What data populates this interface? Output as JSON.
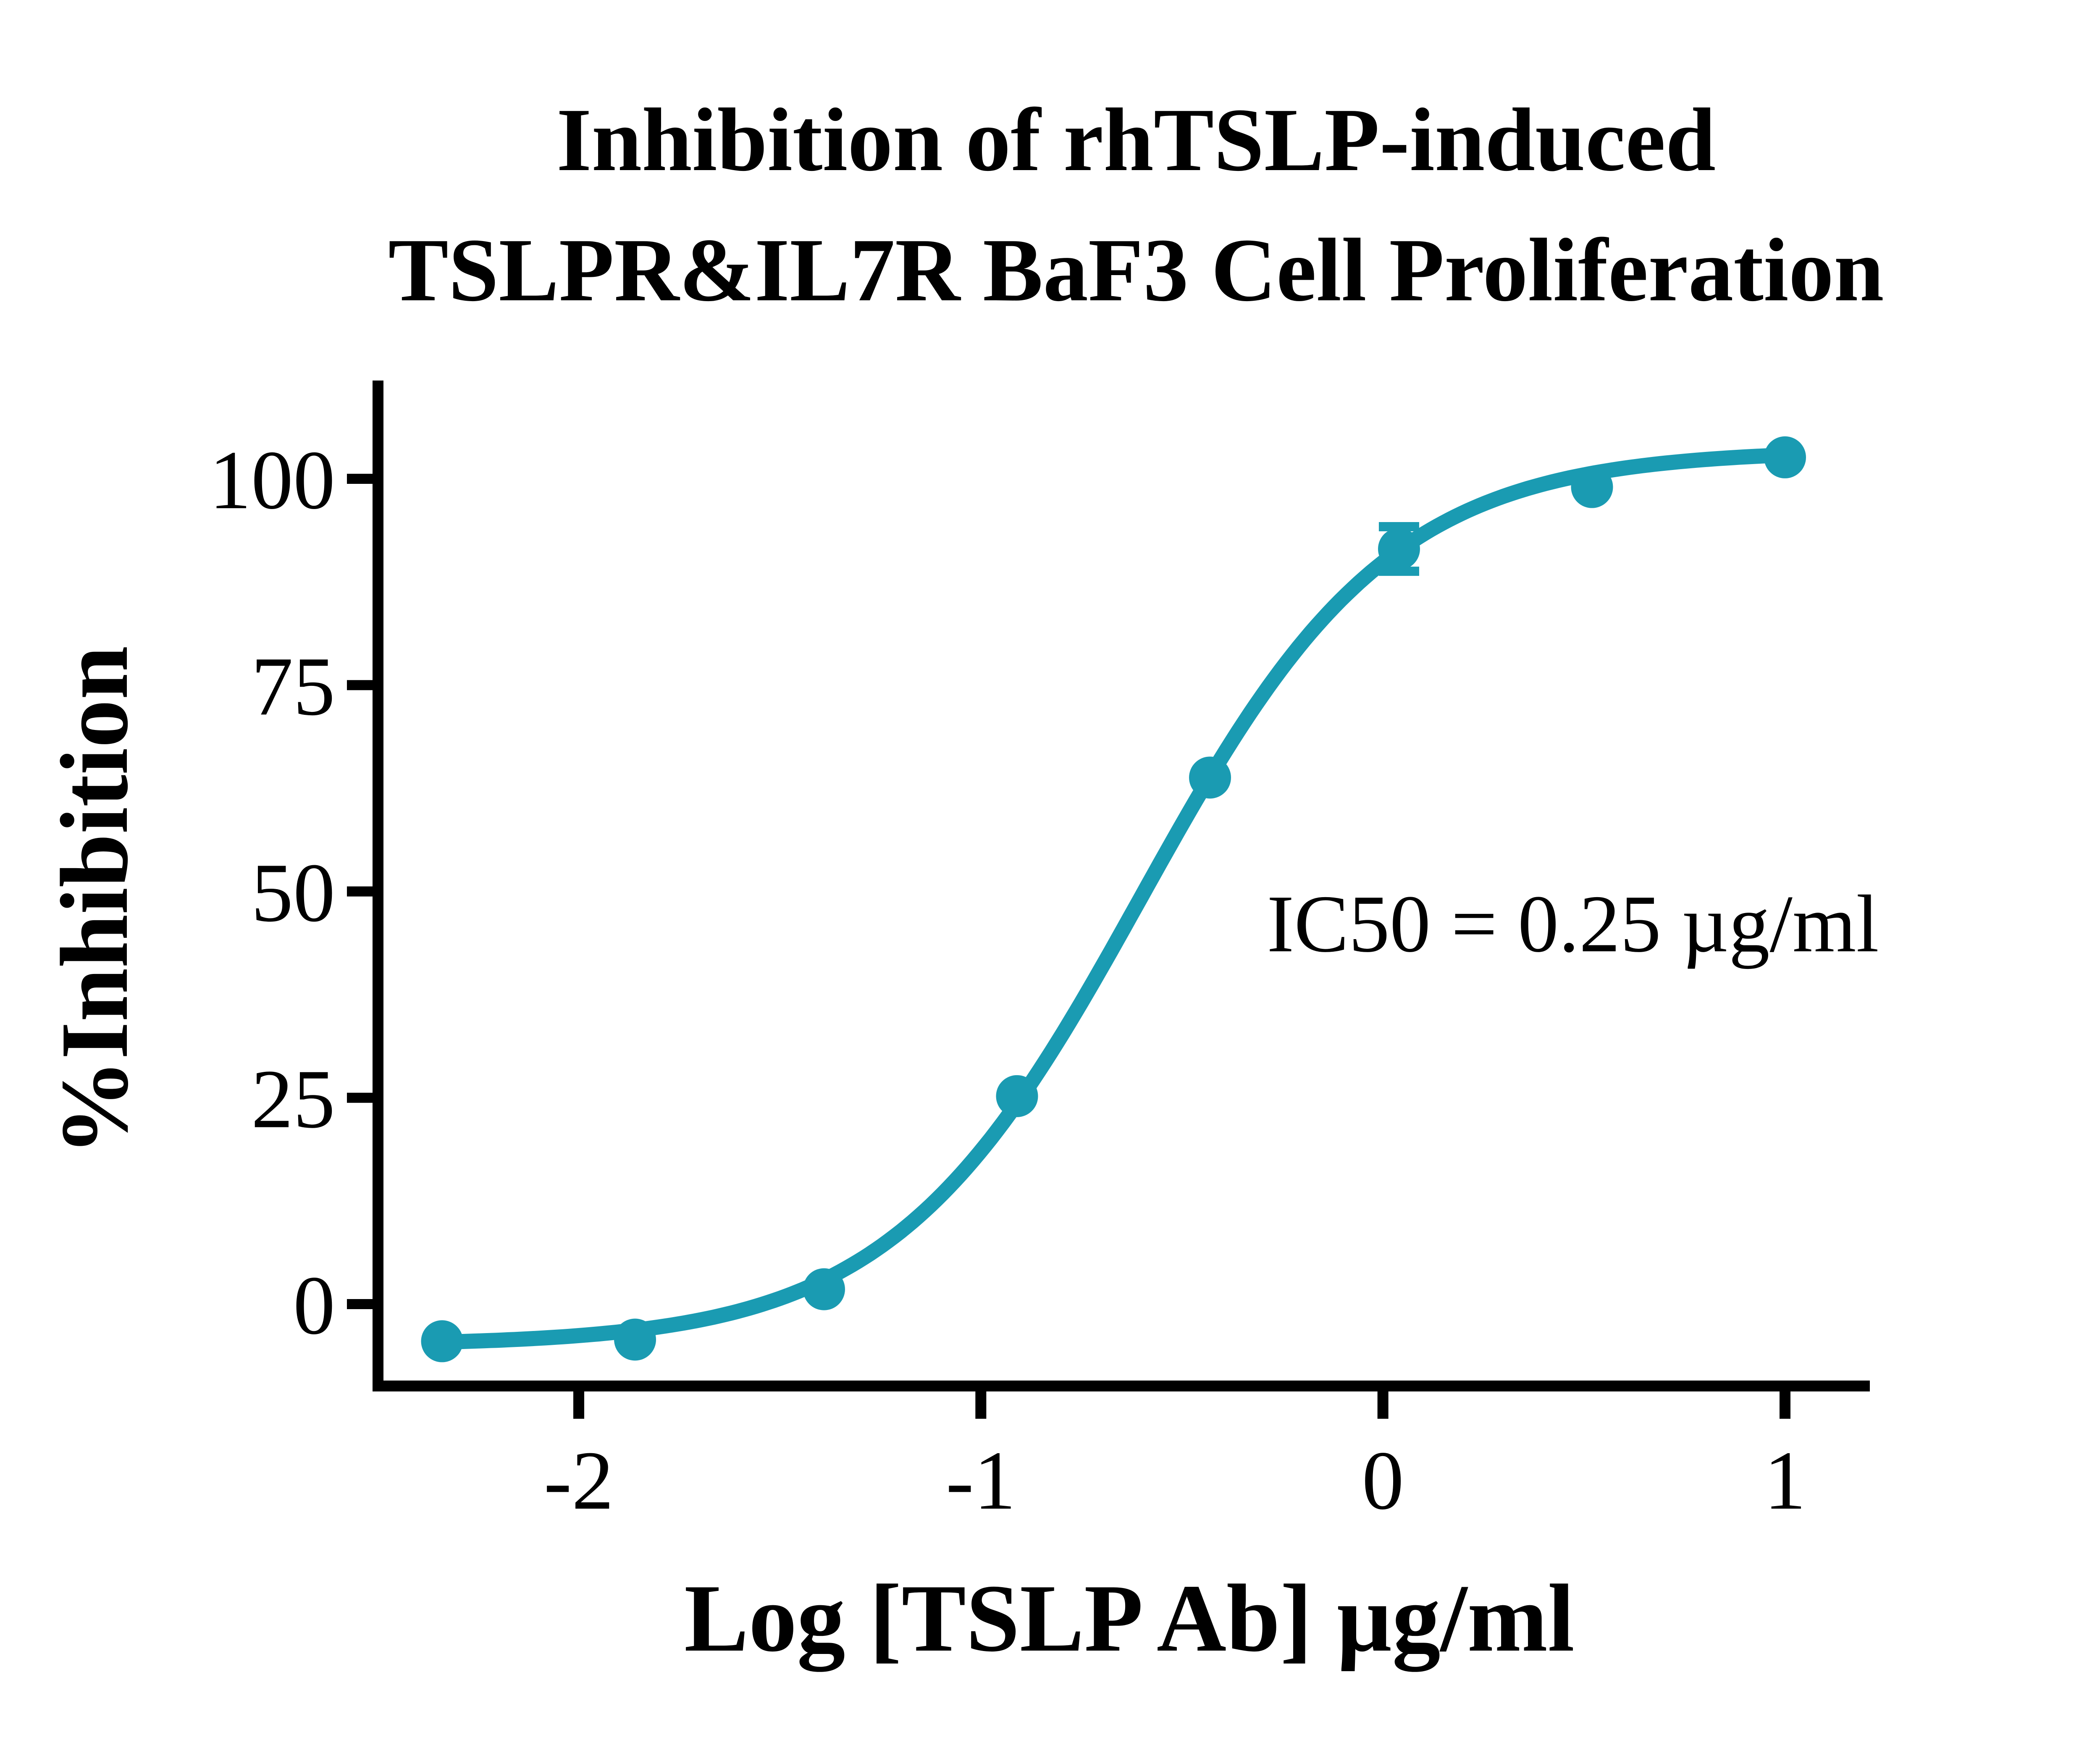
{
  "chart_data": {
    "type": "scatter",
    "title": "Inhibition of rhTSLP-induced TSLPR&IL7R BaF3 Cell Proliferation",
    "title_line1": "Inhibition of rhTSLP-induced",
    "title_line2": "TSLPR&IL7R BaF3 Cell Proliferation",
    "xlabel": "Log [TSLP Ab] µg/ml",
    "ylabel": "%Inhibition",
    "annotation": "IC50 = 0.25 µg/ml",
    "x_ticks": [
      -2,
      -1,
      0,
      1
    ],
    "y_ticks": [
      0,
      25,
      50,
      75,
      100
    ],
    "xlim": [
      -2.5,
      1.21
    ],
    "ylim": [
      -9.9,
      111.7
    ],
    "grid": false,
    "legend": null,
    "axis_color": "#000000",
    "background": "#ffffff",
    "series": [
      {
        "name": "TSLP Ab",
        "color": "#1a9bb2",
        "marker": "circle",
        "points": [
          {
            "log_x": -2.34,
            "y": -4.5
          },
          {
            "log_x": -1.86,
            "y": -4.3
          },
          {
            "log_x": -1.39,
            "y": 1.8
          },
          {
            "log_x": -0.91,
            "y": 25.2
          },
          {
            "log_x": -0.43,
            "y": 63.8
          },
          {
            "log_x": 0.04,
            "y": 91.5,
            "y_error": 2.7
          },
          {
            "log_x": 0.52,
            "y": 99.0
          },
          {
            "log_x": 1.0,
            "y": 102.6
          }
        ],
        "fit": {
          "model": "4PL",
          "bottom": -5.0,
          "top": 103.5,
          "log_ic50": -0.602,
          "hill_slope": 1.4
        }
      }
    ]
  }
}
